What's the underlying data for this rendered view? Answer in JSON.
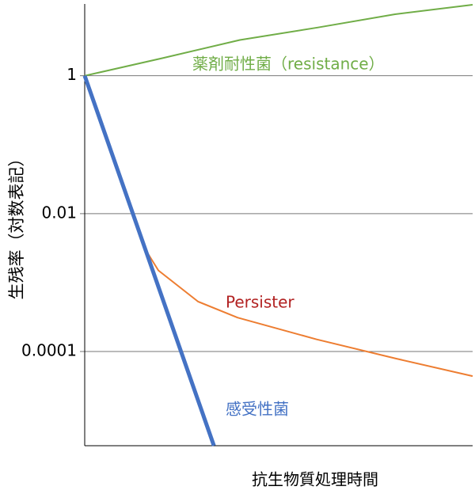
{
  "chart_data": {
    "type": "line",
    "x_label": "抗生物質処理時間",
    "y_label": "生残率（対数表記）",
    "xlim": [
      0,
      10
    ],
    "ylim": [
      4.3e-06,
      11
    ],
    "yticks": [
      1,
      0.01,
      0.0001
    ],
    "log_y": true,
    "grid": true,
    "series": [
      {
        "name": "薬剤耐性菌（resistance）",
        "color": "#70ad47",
        "label_color": "#70ad47",
        "width": 2,
        "x": [
          0,
          2,
          4,
          6,
          8,
          10
        ],
        "values": [
          1,
          1.8,
          3.3,
          5,
          7.8,
          10.7
        ]
      },
      {
        "name": "Persister",
        "color": "#ed7d31",
        "label_color": "#b22222",
        "width": 2,
        "x": [
          0,
          1.6,
          1.9,
          2.92,
          3.94,
          5.98,
          8.02,
          10
        ],
        "values": [
          1,
          0.0028,
          0.0015,
          0.00053,
          0.00031,
          0.00015,
          7.9e-05,
          4.4e-05
        ]
      },
      {
        "name": "感受性菌",
        "color": "#4472c4",
        "label_color": "#4472c4",
        "width": 5,
        "x": [
          0,
          3.33
        ],
        "values": [
          1,
          4.3e-06
        ]
      }
    ]
  }
}
